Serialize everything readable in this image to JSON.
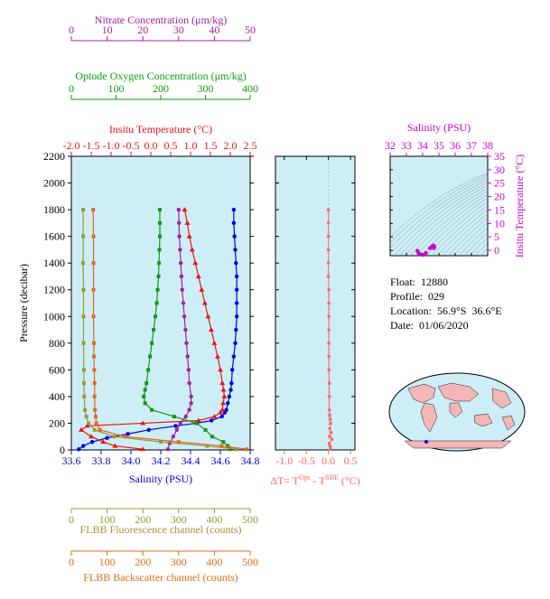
{
  "colors": {
    "nitrate": "#a020a0",
    "oxygen": "#119911",
    "temperature": "#ee1111",
    "salinity": "#0000dd",
    "fluorescence": "#999933",
    "backscatter": "#e06a1a",
    "delta_t": "#ff6666",
    "ts_axis": "#cc00cc",
    "panel_bg": "#cdeef7",
    "land": "#f4b6b6"
  },
  "info": {
    "float_label": "Float:",
    "float_value": "12880",
    "profile_label": "Profile:",
    "profile_value": "029",
    "location_label": "Location:",
    "location_value": "56.9°S  36.6°E",
    "date_label": "Date:",
    "date_value": "01/06/2020"
  },
  "chart_data": [
    {
      "type": "line",
      "panel": "main-profile",
      "ylabel": "Pressure (decibar)",
      "ylim": [
        2200,
        0
      ],
      "yticks": [
        "0",
        "200",
        "400",
        "600",
        "800",
        "1000",
        "1200",
        "1400",
        "1600",
        "1800",
        "2000",
        "2200"
      ],
      "axes": {
        "salinity": {
          "label": "Salinity (PSU)",
          "lim": [
            33.6,
            34.8
          ],
          "ticks": [
            "33.6",
            "33.8",
            "34.0",
            "34.2",
            "34.4",
            "34.6",
            "34.8"
          ]
        },
        "temperature": {
          "label": "Insitu Temperature (°C)",
          "lim": [
            -2.0,
            2.5
          ],
          "ticks": [
            "-2.0",
            "-1.5",
            "-1.0",
            "-0.5",
            "0.0",
            "0.5",
            "1.0",
            "1.5",
            "2.0",
            "2.5"
          ]
        },
        "oxygen": {
          "label": "Optode Oxygen Concentration (μm/kg)",
          "lim": [
            0,
            400
          ],
          "ticks": [
            "0",
            "100",
            "200",
            "300",
            "400"
          ]
        },
        "nitrate": {
          "label": "Nitrate Concentration (μm/kg)",
          "lim": [
            0,
            50
          ],
          "ticks": [
            "0",
            "10",
            "20",
            "30",
            "40",
            "50"
          ]
        },
        "fluorescence": {
          "label": "FLBB Fluorescence channel (counts)",
          "lim": [
            0,
            500
          ],
          "ticks": [
            "0",
            "100",
            "200",
            "300",
            "400",
            "500"
          ]
        },
        "backscatter": {
          "label": "FLBB Backscatter channel (counts)",
          "lim": [
            0,
            500
          ],
          "ticks": [
            "0",
            "100",
            "200",
            "300",
            "400",
            "500"
          ]
        }
      },
      "series": [
        {
          "key": "salinity",
          "pressure": [
            5,
            30,
            60,
            90,
            120,
            150,
            180,
            200,
            220,
            250,
            280,
            300,
            350,
            400,
            450,
            500,
            600,
            700,
            800,
            900,
            1000,
            1100,
            1200,
            1300,
            1400,
            1500,
            1600,
            1700,
            1800
          ],
          "values": [
            33.65,
            33.68,
            33.74,
            33.84,
            33.98,
            34.12,
            34.3,
            34.44,
            34.54,
            34.61,
            34.63,
            34.64,
            34.65,
            34.66,
            34.67,
            34.675,
            34.68,
            34.69,
            34.7,
            34.705,
            34.71,
            34.71,
            34.71,
            34.71,
            34.705,
            34.7,
            34.695,
            34.69,
            34.69
          ]
        },
        {
          "key": "temperature",
          "pressure": [
            5,
            30,
            60,
            100,
            150,
            180,
            200,
            220,
            250,
            280,
            300,
            350,
            400,
            450,
            500,
            600,
            700,
            800,
            900,
            1000,
            1100,
            1200,
            1300,
            1400,
            1500,
            1600,
            1700,
            1800
          ],
          "values": [
            -0.2,
            -0.9,
            -1.2,
            -1.5,
            -1.75,
            -1.6,
            -0.2,
            1.2,
            1.6,
            1.75,
            1.8,
            1.82,
            1.85,
            1.83,
            1.8,
            1.75,
            1.68,
            1.6,
            1.52,
            1.44,
            1.36,
            1.28,
            1.2,
            1.12,
            1.04,
            0.97,
            0.92,
            0.85
          ]
        },
        {
          "key": "oxygen",
          "pressure": [
            5,
            30,
            60,
            100,
            150,
            200,
            250,
            300,
            350,
            400,
            450,
            500,
            600,
            700,
            800,
            900,
            1000,
            1100,
            1200,
            1300,
            1400,
            1500,
            1600,
            1700,
            1800
          ],
          "values": [
            355,
            350,
            340,
            315,
            300,
            280,
            230,
            180,
            165,
            162,
            165,
            168,
            172,
            176,
            180,
            184,
            188,
            191,
            193,
            195,
            196,
            197,
            198,
            198,
            198
          ]
        },
        {
          "key": "nitrate",
          "pressure": [
            5,
            50,
            100,
            150,
            200,
            250,
            300,
            350,
            400,
            500,
            600,
            700,
            800,
            900,
            1000,
            1100,
            1200,
            1300,
            1400,
            1500,
            1600,
            1700,
            1800
          ],
          "values": [
            27,
            27.5,
            28.5,
            29.5,
            30.5,
            32,
            33,
            33.5,
            33.5,
            33,
            32.8,
            32.5,
            32.2,
            31.9,
            31.6,
            31.3,
            31,
            30.8,
            30.6,
            30.4,
            30.2,
            30.1,
            30
          ]
        },
        {
          "key": "fluorescence",
          "pressure": [
            5,
            30,
            60,
            100,
            150,
            200,
            250,
            300,
            400,
            500,
            600,
            800,
            1000,
            1200,
            1400,
            1600,
            1800
          ],
          "values": [
            460,
            380,
            250,
            120,
            65,
            48,
            42,
            38,
            36,
            35,
            35,
            34,
            34,
            34,
            33,
            33,
            33
          ]
        },
        {
          "key": "backscatter",
          "pressure": [
            5,
            30,
            60,
            100,
            150,
            200,
            250,
            300,
            400,
            500,
            600,
            700,
            800,
            1000,
            1200,
            1400,
            1600,
            1800
          ],
          "values": [
            490,
            420,
            300,
            150,
            80,
            70,
            68,
            66,
            65,
            65,
            64,
            63,
            63,
            62,
            62,
            62,
            62,
            61
          ]
        }
      ]
    },
    {
      "type": "scatter",
      "panel": "delta-t",
      "xlabel": "ΔT= T",
      "xlabel_sup1": "Opt",
      "xlabel_mid": " - T",
      "xlabel_sup2": "SBE",
      "xlabel_unit": " (°C)",
      "xlim": [
        -1.2,
        0.6
      ],
      "xticks": [
        "-1.0",
        "-0.5",
        "0.0",
        "0.5"
      ],
      "pressure": [
        10,
        30,
        50,
        80,
        100,
        130,
        160,
        200,
        230,
        260,
        300,
        400,
        500,
        600,
        700,
        800,
        900,
        1000,
        1100,
        1200,
        1300,
        1400,
        1500,
        1600,
        1700,
        1800
      ],
      "values": [
        0.05,
        0.04,
        0.02,
        0.08,
        0.03,
        0.06,
        0.03,
        0.05,
        0.04,
        0.03,
        0.02,
        0.02,
        0.02,
        0.01,
        0.01,
        0.01,
        0.01,
        0.01,
        0.01,
        0.01,
        0.0,
        0.0,
        0.0,
        0.0,
        0.0,
        0.0
      ]
    },
    {
      "type": "scatter",
      "panel": "t-s-diagram",
      "xlabel": "Salinity (PSU)",
      "ylabel": "Insitu Temperature (°C)",
      "xlim": [
        32,
        38
      ],
      "ylim": [
        -2,
        35
      ],
      "xticks": [
        "32",
        "33",
        "34",
        "35",
        "36",
        "37",
        "38"
      ],
      "yticks": [
        "0",
        "5",
        "10",
        "15",
        "20",
        "25",
        "30",
        "35"
      ],
      "salinity": [
        33.68,
        33.75,
        33.85,
        34.0,
        34.2,
        34.45,
        34.6,
        34.65,
        34.68,
        34.7,
        34.71,
        34.7,
        34.69
      ],
      "temperature": [
        -0.2,
        -1.0,
        -1.5,
        -1.7,
        -1.0,
        0.8,
        1.6,
        1.8,
        1.7,
        1.5,
        1.2,
        1.0,
        0.85
      ]
    }
  ]
}
